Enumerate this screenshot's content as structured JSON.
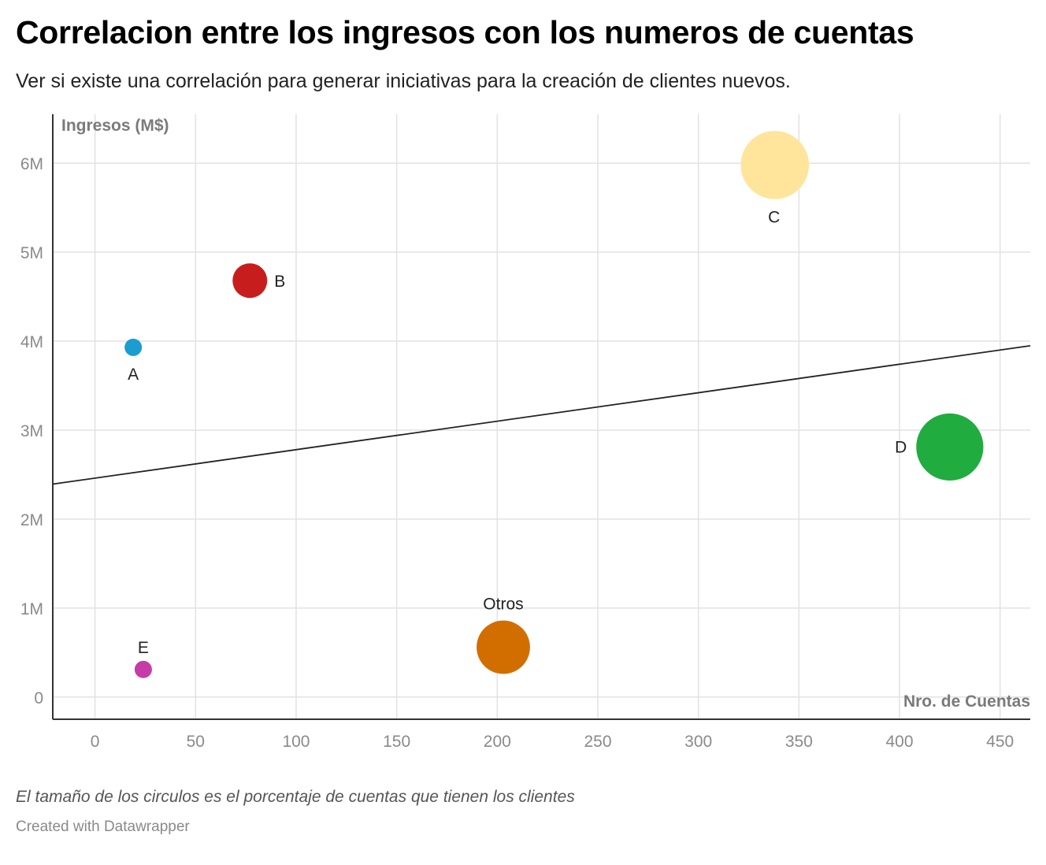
{
  "header": {
    "title": "Correlacion entre los ingresos con los numeros de cuentas",
    "subtitle": "Ver si existe una correlación para generar iniciativas para la creación de clientes nuevos."
  },
  "footer": {
    "note": "El tamaño de los circulos es el porcentaje de cuentas que tienen los clientes",
    "credit": "Created with Datawrapper"
  },
  "chart_data": {
    "type": "scatter",
    "xlabel": "Nro. de Cuentas",
    "ylabel": "Ingresos (M$)",
    "xlim": [
      -21,
      465
    ],
    "ylim": [
      -250000,
      6550000
    ],
    "x_ticks": [
      0,
      50,
      100,
      150,
      200,
      250,
      300,
      350,
      400,
      450
    ],
    "y_ticks": [
      0,
      1000000,
      2000000,
      3000000,
      4000000,
      5000000,
      6000000
    ],
    "y_tick_labels": [
      "0",
      "1M",
      "2M",
      "3M",
      "4M",
      "5M",
      "6M"
    ],
    "grid": true,
    "points": [
      {
        "label": "A",
        "x": 19,
        "y": 3930000,
        "size": 1,
        "color": "#1c9dd0"
      },
      {
        "label": "B",
        "x": 77,
        "y": 4680000,
        "size": 4,
        "color": "#c71e1d"
      },
      {
        "label": "C",
        "x": 338,
        "y": 5980000,
        "size": 15.5,
        "color": "#ffe59c"
      },
      {
        "label": "D",
        "x": 425,
        "y": 2810000,
        "size": 15,
        "color": "#20ac3f"
      },
      {
        "label": "E",
        "x": 24,
        "y": 310000,
        "size": 1,
        "color": "#c53ca8"
      },
      {
        "label": "Otros",
        "x": 203,
        "y": 560000,
        "size": 9.5,
        "color": "#d26e00"
      }
    ],
    "trendline": {
      "intercept": 2460000,
      "slope": 3200
    }
  }
}
